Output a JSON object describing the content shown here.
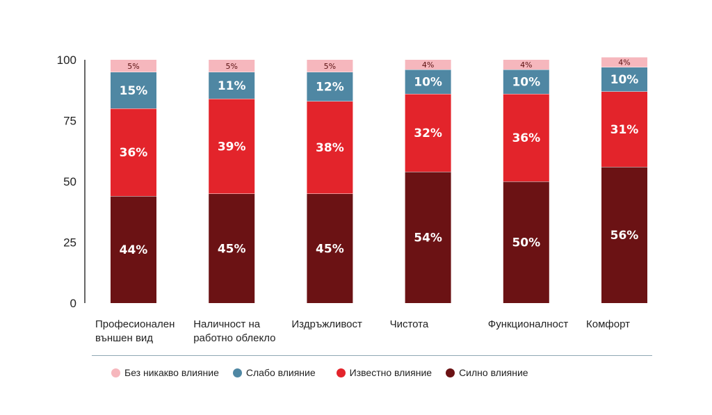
{
  "chart_data": {
    "type": "bar",
    "stacked": true,
    "ylim": [
      0,
      100
    ],
    "yticks": [
      "100",
      "75",
      "50",
      "25",
      "0"
    ],
    "ytick_values": [
      100,
      75,
      50,
      25,
      0
    ],
    "categories": [
      [
        "Професионален",
        "външен вид"
      ],
      [
        "Наличност на",
        "работно облекло"
      ],
      [
        "Издръжливост"
      ],
      [
        "Чистота"
      ],
      [
        "Функционалност"
      ],
      [
        "Комфорт"
      ]
    ],
    "series": [
      {
        "name": "Силно влияние",
        "color": "#6b1214",
        "values": [
          44,
          45,
          45,
          54,
          50,
          56
        ]
      },
      {
        "name": "Известно влияние",
        "color": "#e3242b",
        "values": [
          36,
          39,
          38,
          32,
          36,
          31
        ]
      },
      {
        "name": "Слабо влияние",
        "color": "#4f87a3",
        "values": [
          15,
          11,
          12,
          10,
          10,
          10
        ]
      },
      {
        "name": "Без никакво влияние",
        "color": "#f6b7bd",
        "values": [
          5,
          5,
          5,
          4,
          4,
          4
        ]
      }
    ],
    "grid": false,
    "legend_position": "bottom"
  },
  "legend": [
    {
      "label": "Без никакво влияние",
      "color": "#f6b7bd",
      "icon": "circle"
    },
    {
      "label": "Слабо влияние",
      "color": "#4f87a3",
      "icon": "circle"
    },
    {
      "label": "Известно влияние",
      "color": "#e3242b",
      "icon": "circle"
    },
    {
      "label": "Силно влияние",
      "color": "#6b1214",
      "icon": "circle"
    }
  ]
}
